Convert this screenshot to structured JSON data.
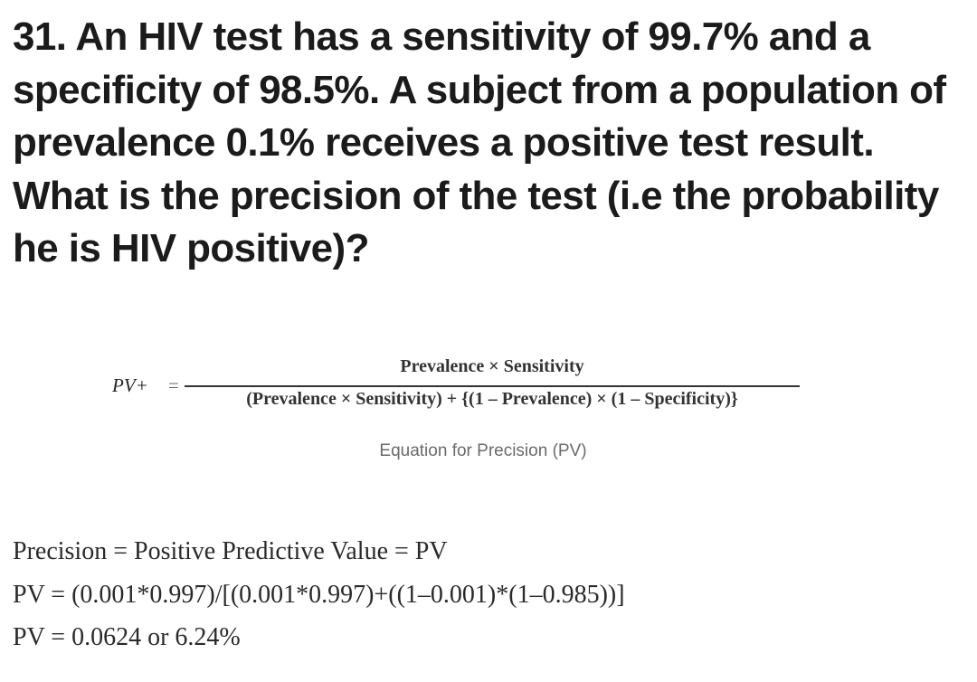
{
  "question": {
    "text": "31. An HIV test has a sensitivity of 99.7% and a specificity of 98.5%. A subject from a population of prevalence 0.1% receives a positive test result. What is the precision of the test (i.e the probability he is HIV positive)?"
  },
  "equation": {
    "lhs": "PV+",
    "equals": "=",
    "numerator": "Prevalence × Sensitivity",
    "denominator": "(Prevalence × Sensitivity) + {(1 – Prevalence) × (1 – Specificity)}",
    "caption": "Equation for Precision (PV)"
  },
  "calculation": {
    "lines": [
      "Precision = Positive Predictive Value = PV",
      "PV = (0.001*0.997)/[(0.001*0.997)+((1–0.001)*(1–0.985))]",
      "PV = 0.0624 or 6.24%"
    ]
  }
}
